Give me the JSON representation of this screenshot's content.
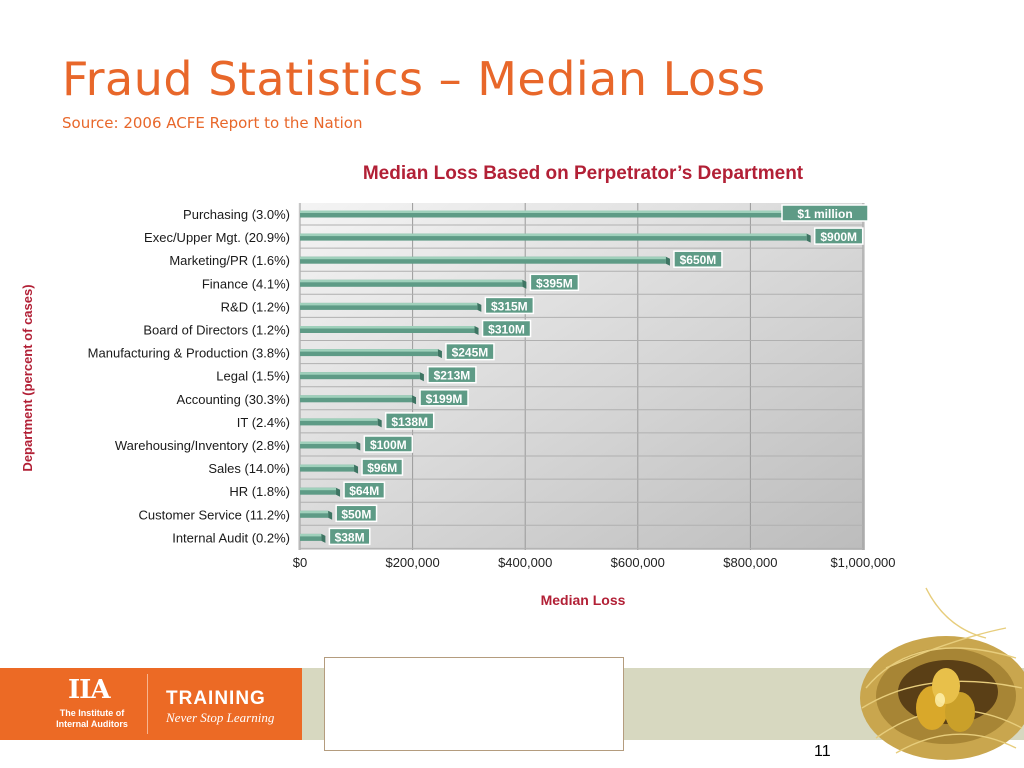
{
  "slide": {
    "title": "Fraud Statistics – Median Loss",
    "subtitle": "Source:  2006 ACFE Report to the Nation",
    "page_number": "11"
  },
  "footer": {
    "org_mark": "IIA",
    "org_name": "The Institute of Internal Auditors",
    "training": "TRAINING",
    "tagline": "Never Stop Learning"
  },
  "colors": {
    "title": "#e8672a",
    "chart_title": "#b22036",
    "bar": "#5e9b86",
    "bar_light": "#9fd0bb",
    "label_bg": "#5e9b86",
    "footer_orange": "#ec6a25",
    "footer_band": "#d7d8c0"
  },
  "chart_data": {
    "type": "bar",
    "orientation": "horizontal",
    "title": "Median Loss Based on Perpetrator’s Department",
    "xlabel": "Median Loss",
    "ylabel": "Department (percent of cases)",
    "xlim": [
      0,
      1000000
    ],
    "xticks": [
      0,
      200000,
      400000,
      600000,
      800000,
      1000000
    ],
    "xtick_labels": [
      "$0",
      "$200,000",
      "$400,000",
      "$600,000",
      "$800,000",
      "$1,000,000"
    ],
    "categories": [
      "Purchasing (3.0%)",
      "Exec/Upper Mgt. (20.9%)",
      "Marketing/PR (1.6%)",
      "Finance (4.1%)",
      "R&D (1.2%)",
      "Board of Directors (1.2%)",
      "Manufacturing & Production (3.8%)",
      "Legal (1.5%)",
      "Accounting (30.3%)",
      "IT (2.4%)",
      "Warehousing/Inventory (2.8%)",
      "Sales (14.0%)",
      "HR (1.8%)",
      "Customer Service (11.2%)",
      "Internal Audit (0.2%)"
    ],
    "values": [
      1000000,
      900000,
      650000,
      395000,
      315000,
      310000,
      245000,
      213000,
      199000,
      138000,
      100000,
      96000,
      64000,
      50000,
      38000
    ],
    "value_labels": [
      "$1 million",
      "$900M",
      "$650M",
      "$395M",
      "$315M",
      "$310M",
      "$245M",
      "$213M",
      "$199M",
      "$138M",
      "$100M",
      "$96M",
      "$64M",
      "$50M",
      "$38M"
    ],
    "grid": true
  }
}
